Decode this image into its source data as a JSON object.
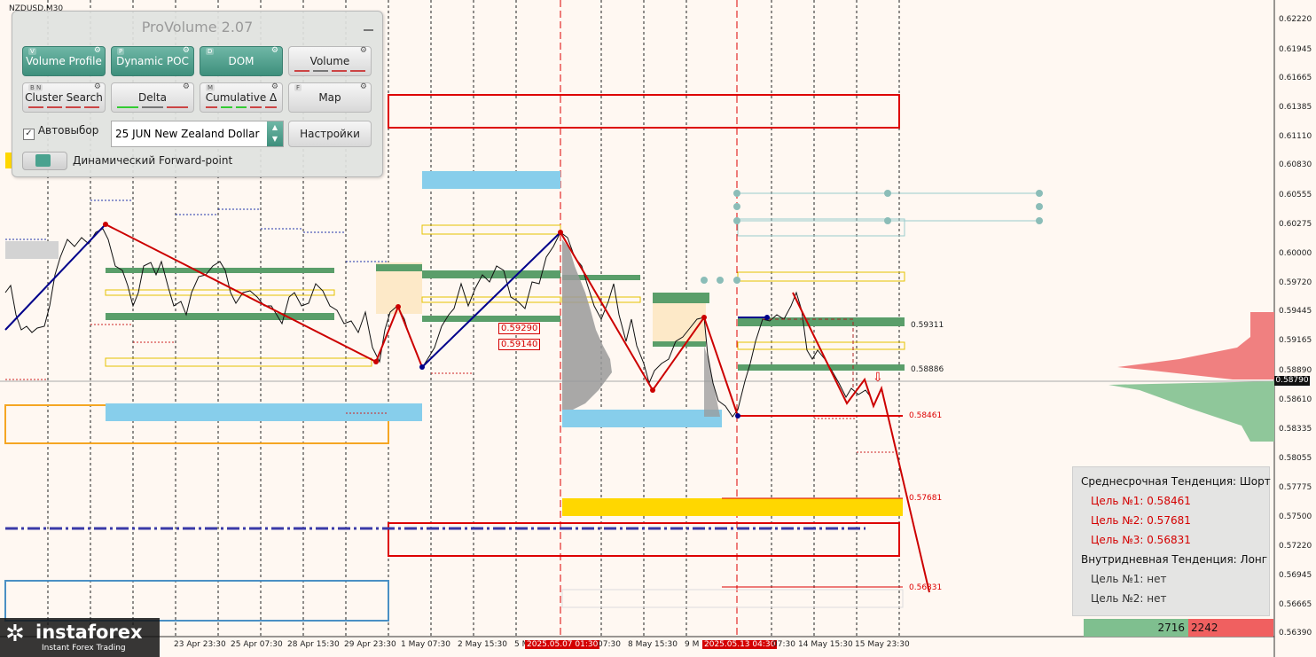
{
  "symbol": "NZDUSD,M30",
  "panel": {
    "title": "ProVolume 2.07",
    "buttons": [
      {
        "label": "Volume Profile",
        "hotkey": "V",
        "on": true
      },
      {
        "label": "Dynamic POC",
        "hotkey": "P",
        "on": true
      },
      {
        "label": "DOM",
        "hotkey": "D",
        "on": true
      },
      {
        "label": "Volume",
        "hotkey": "",
        "on": false
      },
      {
        "label": "Cluster Search",
        "hotkey": "B N",
        "on": false
      },
      {
        "label": "Delta",
        "hotkey": "",
        "on": false
      },
      {
        "label": "Cumulative Δ",
        "hotkey": "M",
        "on": false
      },
      {
        "label": "Map",
        "hotkey": "F",
        "on": false
      }
    ],
    "auto_select_label": "Автовыбор",
    "auto_select_checked": true,
    "contract_value": "25 JUN New Zealand Dollar",
    "settings_label": "Настройки",
    "forward_point_label": "Динамический Forward-point"
  },
  "price_axis": [
    "0.62220",
    "0.61945",
    "0.61665",
    "0.61385",
    "0.61110",
    "0.60830",
    "0.60555",
    "0.60275",
    "0.60000",
    "0.59720",
    "0.59445",
    "0.59165",
    "0.58890",
    "0.58610",
    "0.58335",
    "0.58055",
    "0.57775",
    "0.57500",
    "0.57220",
    "0.56945",
    "0.56665",
    "0.56390"
  ],
  "current_price": "0.58790",
  "time_axis": [
    "23 Apr 23:30",
    "25 Apr 07:30",
    "28 Apr 15:30",
    "29 Apr 23:30",
    "1 May 07:30",
    "2 May 15:30",
    "5 M",
    "2025.05.07 01:30",
    "07:30",
    "8 May 15:30",
    "9 M",
    "2025.05.13 04:30",
    "07:30",
    "14 May 15:30",
    "15 May 23:30"
  ],
  "levels": {
    "right": [
      "0.59311",
      "0.58886",
      "0.58461",
      "0.57681",
      "0.56831"
    ],
    "boxed": [
      "0.59290",
      "0.59140"
    ]
  },
  "info": {
    "medium_trend": "Среднесрочная Тенденция: Шорт",
    "medium_targets": [
      "Цель №1: 0.58461",
      "Цель №2: 0.57681",
      "Цель №3: 0.56831"
    ],
    "intraday_trend": "Внутридневная Тенденция: Лонг",
    "intraday_targets": [
      "Цель №1: нет",
      "Цель №2: нет"
    ]
  },
  "delta": {
    "buy": "2716",
    "sell": "2242"
  },
  "logo": {
    "name": "instaforex",
    "tagline": "Instant Forex Trading"
  },
  "colors": {
    "up_line": "#00008b",
    "down_line": "#cc0000",
    "poc_green": "#5a9e6a",
    "value_blue": "#87ceeb",
    "target_yellow": "#ffd700",
    "zone_red": "#dd0000"
  }
}
